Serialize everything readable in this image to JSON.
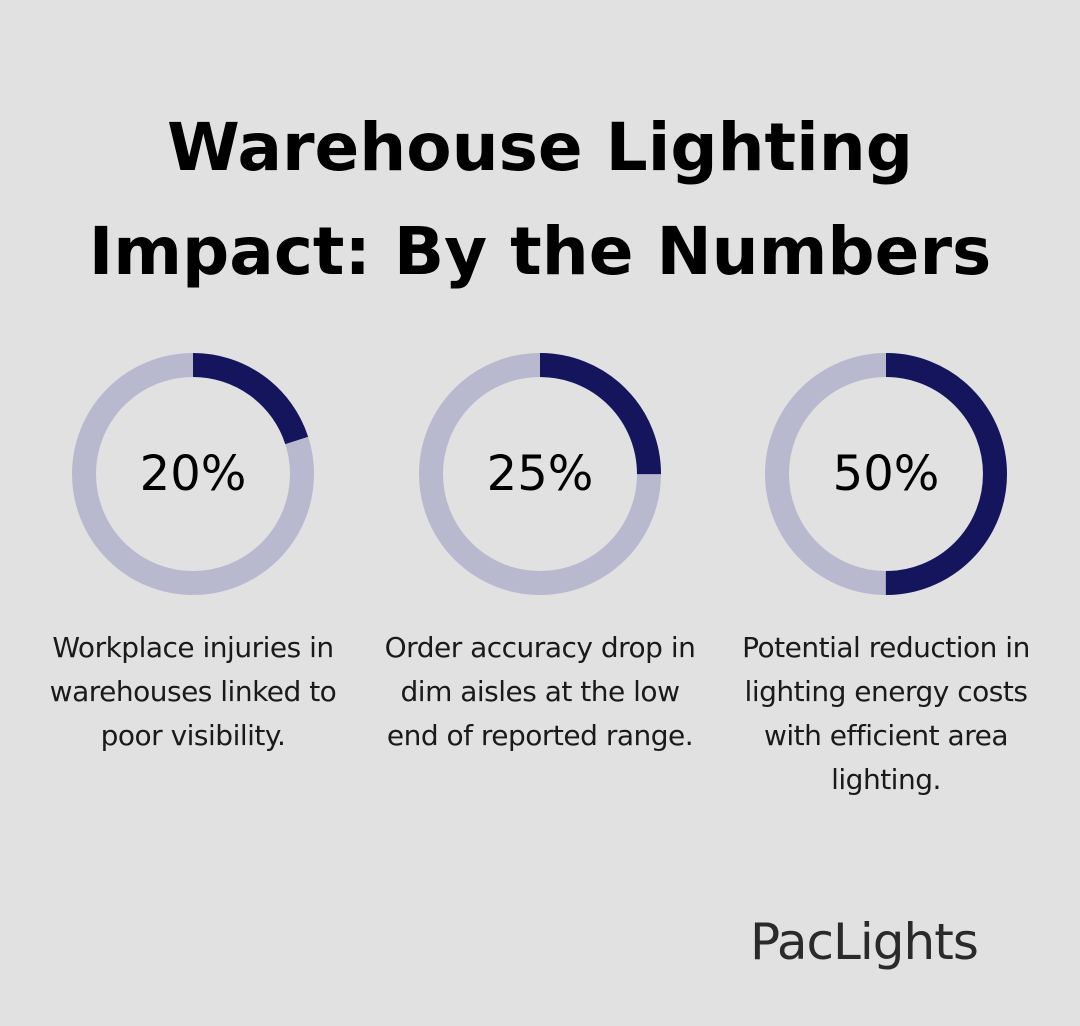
{
  "title_lines": [
    "Warehouse Lighting",
    "Impact: By the Numbers"
  ],
  "colors": {
    "background": "#e0e1e0",
    "ring_track": "#b8b9cf",
    "ring_fill": "#15155e",
    "text": "#000000"
  },
  "chart_data": [
    {
      "type": "pie",
      "value": 20,
      "label": "20%",
      "caption": "Workplace injuries in warehouses linked to poor visibility."
    },
    {
      "type": "pie",
      "value": 25,
      "label": "25%",
      "caption": "Order accuracy drop in dim aisles at the low end of reported range."
    },
    {
      "type": "pie",
      "value": 50,
      "label": "50%",
      "caption": "Potential reduction in lighting energy costs with efficient area lighting."
    }
  ],
  "logo": "PacLights"
}
